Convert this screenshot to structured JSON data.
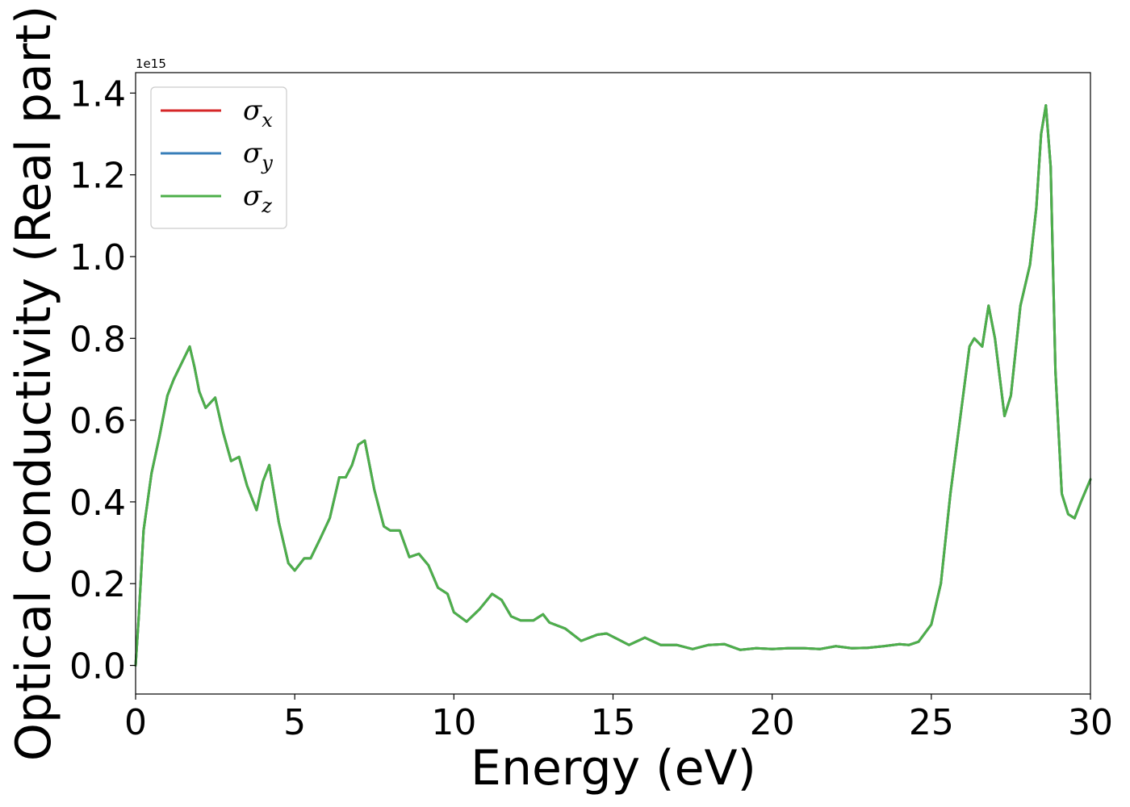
{
  "chart_data": {
    "type": "line",
    "xlabel": "Energy (eV)",
    "ylabel": "Optical conductivity (Real part)",
    "y_offset_text": "1e15",
    "y_scale": 1000000000000000.0,
    "xlim": [
      0,
      30
    ],
    "ylim": [
      -0.07,
      1.45
    ],
    "xticks": [
      0,
      5,
      10,
      15,
      20,
      25,
      30
    ],
    "xtick_labels": [
      "0",
      "5",
      "10",
      "15",
      "20",
      "25",
      "30"
    ],
    "yticks": [
      0.0,
      0.2,
      0.4,
      0.6,
      0.8,
      1.0,
      1.2,
      1.4
    ],
    "ytick_labels": [
      "0.0",
      "0.2",
      "0.4",
      "0.6",
      "0.8",
      "1.0",
      "1.2",
      "1.4"
    ],
    "grid": false,
    "legend_position": "top-left",
    "legend": [
      {
        "base": "σ",
        "sub": "x",
        "color": "#d62728"
      },
      {
        "base": "σ",
        "sub": "y",
        "color": "#377eb8"
      },
      {
        "base": "σ",
        "sub": "z",
        "color": "#4daf4a"
      }
    ],
    "x": [
      0,
      0.1,
      0.25,
      0.5,
      0.75,
      1.0,
      1.2,
      1.45,
      1.7,
      1.85,
      2.0,
      2.2,
      2.5,
      2.75,
      3.0,
      3.25,
      3.5,
      3.8,
      4.0,
      4.2,
      4.5,
      4.8,
      5.0,
      5.3,
      5.5,
      5.8,
      6.1,
      6.4,
      6.6,
      6.8,
      7.0,
      7.2,
      7.5,
      7.8,
      8.0,
      8.3,
      8.6,
      8.9,
      9.2,
      9.5,
      9.8,
      10.0,
      10.4,
      10.8,
      11.2,
      11.5,
      11.8,
      12.1,
      12.5,
      12.8,
      13.0,
      13.5,
      14.0,
      14.5,
      14.8,
      15.0,
      15.5,
      16.0,
      16.5,
      17.0,
      17.5,
      18.0,
      18.5,
      19.0,
      19.5,
      20.0,
      20.5,
      21.0,
      21.5,
      22.0,
      22.5,
      23.0,
      23.5,
      24.0,
      24.3,
      24.6,
      25.0,
      25.3,
      25.6,
      25.9,
      26.2,
      26.35,
      26.6,
      26.8,
      27.0,
      27.3,
      27.5,
      27.8,
      28.1,
      28.3,
      28.45,
      28.6,
      28.75,
      28.9,
      29.1,
      29.3,
      29.5,
      29.7,
      30.0
    ],
    "series": [
      {
        "name": "σx",
        "color": "#d62728",
        "y": [
          0.0,
          0.12,
          0.33,
          0.47,
          0.56,
          0.66,
          0.7,
          0.74,
          0.78,
          0.73,
          0.67,
          0.63,
          0.655,
          0.57,
          0.5,
          0.51,
          0.44,
          0.38,
          0.45,
          0.49,
          0.35,
          0.25,
          0.232,
          0.262,
          0.262,
          0.31,
          0.36,
          0.46,
          0.46,
          0.49,
          0.54,
          0.55,
          0.43,
          0.34,
          0.33,
          0.33,
          0.265,
          0.273,
          0.245,
          0.19,
          0.175,
          0.13,
          0.107,
          0.137,
          0.175,
          0.16,
          0.12,
          0.11,
          0.11,
          0.125,
          0.105,
          0.09,
          0.06,
          0.075,
          0.078,
          0.07,
          0.05,
          0.068,
          0.05,
          0.05,
          0.04,
          0.05,
          0.052,
          0.038,
          0.042,
          0.04,
          0.042,
          0.042,
          0.04,
          0.047,
          0.042,
          0.043,
          0.047,
          0.052,
          0.05,
          0.058,
          0.1,
          0.2,
          0.42,
          0.6,
          0.78,
          0.8,
          0.78,
          0.88,
          0.8,
          0.61,
          0.66,
          0.88,
          0.98,
          1.12,
          1.3,
          1.37,
          1.22,
          0.72,
          0.42,
          0.37,
          0.36,
          0.4,
          0.455
        ]
      },
      {
        "name": "σy",
        "color": "#377eb8",
        "y": [
          0.0,
          0.12,
          0.33,
          0.47,
          0.56,
          0.66,
          0.7,
          0.74,
          0.78,
          0.73,
          0.67,
          0.63,
          0.655,
          0.57,
          0.5,
          0.51,
          0.44,
          0.38,
          0.45,
          0.49,
          0.35,
          0.25,
          0.232,
          0.262,
          0.262,
          0.31,
          0.36,
          0.46,
          0.46,
          0.49,
          0.54,
          0.55,
          0.43,
          0.34,
          0.33,
          0.33,
          0.265,
          0.273,
          0.245,
          0.19,
          0.175,
          0.13,
          0.107,
          0.137,
          0.175,
          0.16,
          0.12,
          0.11,
          0.11,
          0.125,
          0.105,
          0.09,
          0.06,
          0.075,
          0.078,
          0.07,
          0.05,
          0.068,
          0.05,
          0.05,
          0.04,
          0.05,
          0.052,
          0.038,
          0.042,
          0.04,
          0.042,
          0.042,
          0.04,
          0.047,
          0.042,
          0.043,
          0.047,
          0.052,
          0.05,
          0.058,
          0.1,
          0.2,
          0.42,
          0.6,
          0.78,
          0.8,
          0.78,
          0.88,
          0.8,
          0.61,
          0.66,
          0.88,
          0.98,
          1.12,
          1.3,
          1.37,
          1.22,
          0.72,
          0.42,
          0.37,
          0.36,
          0.4,
          0.455
        ]
      },
      {
        "name": "σz",
        "color": "#4daf4a",
        "y": [
          0.0,
          0.12,
          0.33,
          0.47,
          0.56,
          0.66,
          0.7,
          0.74,
          0.78,
          0.73,
          0.67,
          0.63,
          0.655,
          0.57,
          0.5,
          0.51,
          0.44,
          0.38,
          0.45,
          0.49,
          0.35,
          0.25,
          0.232,
          0.262,
          0.262,
          0.31,
          0.36,
          0.46,
          0.46,
          0.49,
          0.54,
          0.55,
          0.43,
          0.34,
          0.33,
          0.33,
          0.265,
          0.273,
          0.245,
          0.19,
          0.175,
          0.13,
          0.107,
          0.137,
          0.175,
          0.16,
          0.12,
          0.11,
          0.11,
          0.125,
          0.105,
          0.09,
          0.06,
          0.075,
          0.078,
          0.07,
          0.05,
          0.068,
          0.05,
          0.05,
          0.04,
          0.05,
          0.052,
          0.038,
          0.042,
          0.04,
          0.042,
          0.042,
          0.04,
          0.047,
          0.042,
          0.043,
          0.047,
          0.052,
          0.05,
          0.058,
          0.1,
          0.2,
          0.42,
          0.6,
          0.78,
          0.8,
          0.78,
          0.88,
          0.8,
          0.61,
          0.66,
          0.88,
          0.98,
          1.12,
          1.3,
          1.37,
          1.22,
          0.72,
          0.42,
          0.37,
          0.36,
          0.4,
          0.455
        ]
      }
    ]
  }
}
